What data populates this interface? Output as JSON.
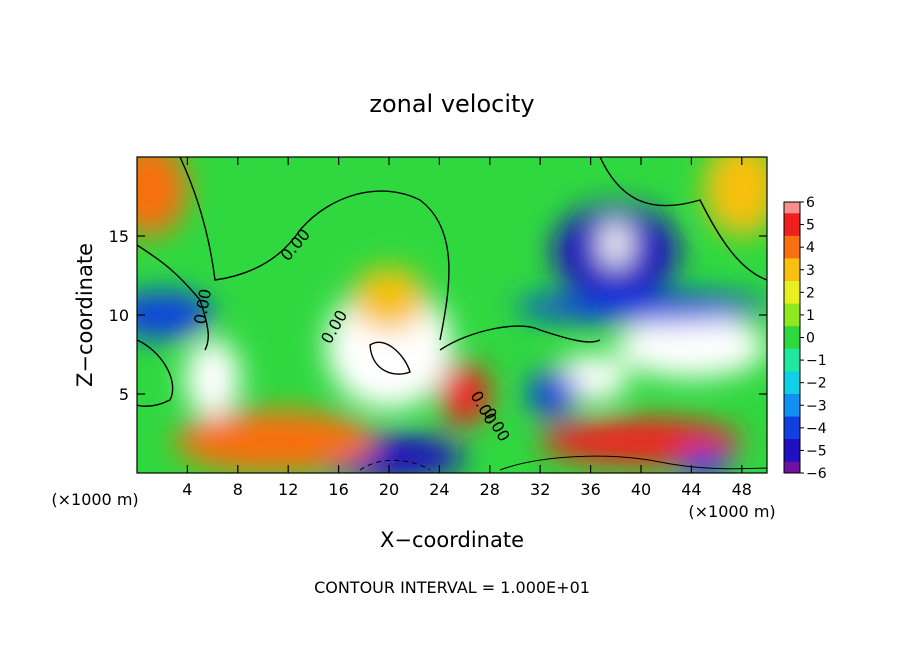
{
  "chart_data": {
    "type": "heatmap",
    "title": "zonal velocity",
    "xlabel": "X−coordinate",
    "ylabel": "Z−coordinate",
    "xunit_left": "(×1000 m)",
    "xunit_right": "(×1000 m)",
    "footer": "CONTOUR INTERVAL = 1.000E+01",
    "xlim": [
      0,
      50
    ],
    "ylim": [
      0,
      20
    ],
    "xticks": [
      4,
      8,
      12,
      16,
      20,
      24,
      28,
      32,
      36,
      40,
      44,
      48
    ],
    "yticks": [
      5,
      10,
      15
    ],
    "colorbar": {
      "ticks": [
        6,
        5,
        4,
        3,
        2,
        1,
        0,
        -1,
        -2,
        -3,
        -4,
        -5,
        -6
      ],
      "range": [
        -6,
        6
      ]
    },
    "contour_labels": [
      "0.00",
      "0.00",
      "0.00",
      "0.00",
      "0.00"
    ],
    "field_blobs": [
      {
        "x": 20,
        "y": 8,
        "value": 7.5,
        "rx": 5,
        "ry": 4
      },
      {
        "x": 6,
        "y": 6,
        "value": 6.5,
        "rx": 2.2,
        "ry": 2.5
      },
      {
        "x": 1,
        "y": 18,
        "value": 3.5,
        "rx": 3,
        "ry": 3
      },
      {
        "x": 48,
        "y": 18,
        "value": 3,
        "rx": 3,
        "ry": 3
      },
      {
        "x": 20,
        "y": 11,
        "value": 2.5,
        "rx": 3,
        "ry": 2
      },
      {
        "x": 38,
        "y": 14,
        "value": -5.5,
        "rx": 5,
        "ry": 3
      },
      {
        "x": 38,
        "y": 14.5,
        "value": 6.5,
        "rx": 1.2,
        "ry": 1.5
      },
      {
        "x": 44,
        "y": 8,
        "value": 7,
        "rx": 6,
        "ry": 2
      },
      {
        "x": 36,
        "y": 6,
        "value": 7,
        "rx": 3,
        "ry": 1.5
      },
      {
        "x": 40,
        "y": 2,
        "value": 5,
        "rx": 8,
        "ry": 1.5
      },
      {
        "x": 20,
        "y": 1,
        "value": -5,
        "rx": 6,
        "ry": 1.5
      },
      {
        "x": 2,
        "y": 10,
        "value": -4,
        "rx": 4,
        "ry": 1.5
      },
      {
        "x": 11,
        "y": 2,
        "value": 4,
        "rx": 8,
        "ry": 2
      },
      {
        "x": 40,
        "y": 10.5,
        "value": -4,
        "rx": 10,
        "ry": 1
      },
      {
        "x": 26,
        "y": 5,
        "value": 5,
        "rx": 2,
        "ry": 2
      },
      {
        "x": 33,
        "y": 5,
        "value": -4,
        "rx": 2,
        "ry": 1.5
      },
      {
        "x": 45,
        "y": 0.5,
        "value": -4,
        "rx": 2,
        "ry": 1
      }
    ]
  }
}
